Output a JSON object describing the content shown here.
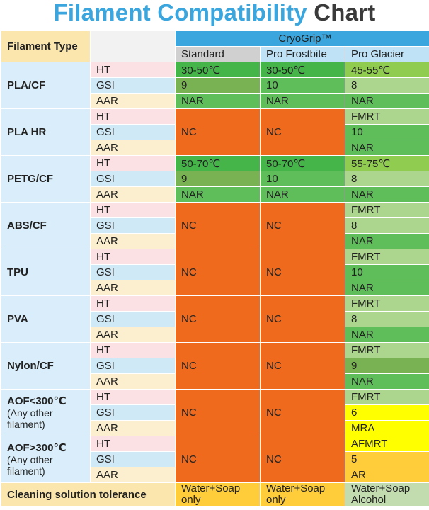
{
  "title": {
    "part1": "Filament Compatibility",
    "part2": "Chart"
  },
  "header": {
    "filament_type": "Filament Type",
    "brand": "CryoGrip™",
    "columns": [
      "Standard",
      "Pro Frostbite",
      "Pro Glacier"
    ]
  },
  "prop_labels": [
    "HT",
    "GSI",
    "AAR"
  ],
  "rows": [
    {
      "type": "PLA/CF",
      "subtitle": "",
      "std": [
        "30-50℃",
        "9",
        "NAR"
      ],
      "frost": [
        "30-50℃",
        "10",
        "NAR"
      ],
      "glacier": [
        "45-55℃",
        "8",
        "NAR"
      ]
    },
    {
      "type": "PLA HR",
      "subtitle": "",
      "std": [
        "NC"
      ],
      "frost": [
        "NC"
      ],
      "glacier": [
        "FMRT",
        "10",
        "NAR"
      ]
    },
    {
      "type": "PETG/CF",
      "subtitle": "",
      "std": [
        "50-70℃",
        "9",
        "NAR"
      ],
      "frost": [
        "50-70℃",
        "10",
        "NAR"
      ],
      "glacier": [
        "55-75℃",
        "8",
        "NAR"
      ]
    },
    {
      "type": "ABS/CF",
      "subtitle": "",
      "std": [
        "NC"
      ],
      "frost": [
        "NC"
      ],
      "glacier": [
        "FMRT",
        "8",
        "NAR"
      ]
    },
    {
      "type": "TPU",
      "subtitle": "",
      "std": [
        "NC"
      ],
      "frost": [
        "NC"
      ],
      "glacier": [
        "FMRT",
        "10",
        "NAR"
      ]
    },
    {
      "type": "PVA",
      "subtitle": "",
      "std": [
        "NC"
      ],
      "frost": [
        "NC"
      ],
      "glacier": [
        "FMRT",
        "8",
        "NAR"
      ]
    },
    {
      "type": "Nylon/CF",
      "subtitle": "",
      "std": [
        "NC"
      ],
      "frost": [
        "NC"
      ],
      "glacier": [
        "FMRT",
        "9",
        "NAR"
      ]
    },
    {
      "type": "AOF<300℃",
      "subtitle": "(Any other filament)",
      "std": [
        "NC"
      ],
      "frost": [
        "NC"
      ],
      "glacier": [
        "FMRT",
        "6",
        "MRA"
      ]
    },
    {
      "type": "AOF>300℃",
      "subtitle": "(Any other filament)",
      "std": [
        "NC"
      ],
      "frost": [
        "NC"
      ],
      "glacier": [
        "AFMRT",
        "5",
        "AR"
      ]
    }
  ],
  "footer": {
    "label": "Cleaning solution tolerance",
    "std": "Water+Soap only",
    "frost": "Water+Soap only",
    "glacier": "Water+Soap Alcohol"
  },
  "colors": {
    "title_blue": "#3aa6dd",
    "brand_blue": "#3aa6dd",
    "not_compatible_orange": "#f06a1e",
    "green_dark": "#45b549",
    "green_light": "#acd68d",
    "yellow": "#ffff00",
    "gold": "#ffcd3a"
  }
}
